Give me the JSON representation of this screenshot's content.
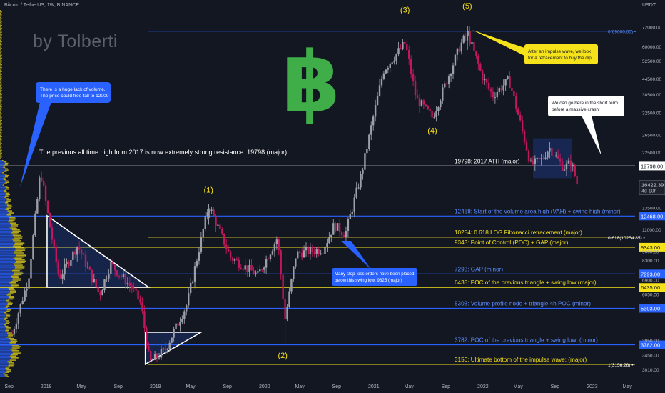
{
  "header": {
    "symbol_line": "Bitcoin / TetherUS, 1W, BINANCE",
    "currency": "USDT"
  },
  "watermark": {
    "text": "by Tolberti",
    "logo_glyph": "฿",
    "logo_color": "#3fae49"
  },
  "colors": {
    "bg": "#131722",
    "up": "#9c9fa8",
    "down": "#c2185b",
    "yellow": "#f5e21b",
    "blue": "#2962ff",
    "white": "#ffffff",
    "callout_blue": "#2962ff",
    "callout_yellow": "#f5e21b"
  },
  "chart_data": {
    "type": "candlestick",
    "symbol": "BTCUSDT",
    "timeframe": "1W",
    "y_scale": "log",
    "ylim": [
      2800,
      82000
    ],
    "x_ticks": [
      "Sep",
      "2018",
      "May",
      "Sep",
      "2019",
      "May",
      "Sep",
      "2020",
      "May",
      "Sep",
      "2021",
      "May",
      "Sep",
      "2022",
      "May",
      "Sep",
      "2023",
      "May"
    ],
    "y_ticks": [
      "72000.00",
      "60000.00",
      "52500.00",
      "44500.00",
      "38500.00",
      "32500.00",
      "26500.00",
      "22500.00",
      "16422.39",
      "13500.00",
      "11000.00",
      "9000.00",
      "8300.00",
      "6900.00",
      "6050.00",
      "3950.00",
      "3450.00",
      "3010.00"
    ],
    "path_anchors": [
      {
        "t": 2017.7,
        "price": 4200
      },
      {
        "t": 2017.85,
        "price": 7000
      },
      {
        "t": 2017.96,
        "price": 19000
      },
      {
        "t": 2018.05,
        "price": 11000
      },
      {
        "t": 2018.13,
        "price": 7000
      },
      {
        "t": 2018.3,
        "price": 9500
      },
      {
        "t": 2018.5,
        "price": 6000
      },
      {
        "t": 2018.6,
        "price": 8000
      },
      {
        "t": 2018.8,
        "price": 6400
      },
      {
        "t": 2018.88,
        "price": 5500
      },
      {
        "t": 2018.96,
        "price": 3200
      },
      {
        "t": 2019.1,
        "price": 3600
      },
      {
        "t": 2019.3,
        "price": 5500
      },
      {
        "t": 2019.5,
        "price": 13800
      },
      {
        "t": 2019.7,
        "price": 8500
      },
      {
        "t": 2019.95,
        "price": 7200
      },
      {
        "t": 2020.13,
        "price": 10200
      },
      {
        "t": 2020.2,
        "price": 4800
      },
      {
        "t": 2020.3,
        "price": 8800
      },
      {
        "t": 2020.55,
        "price": 9200
      },
      {
        "t": 2020.65,
        "price": 11500
      },
      {
        "t": 2020.75,
        "price": 10500
      },
      {
        "t": 2020.9,
        "price": 18500
      },
      {
        "t": 2021.0,
        "price": 30000
      },
      {
        "t": 2021.1,
        "price": 48000
      },
      {
        "t": 2021.3,
        "price": 62000
      },
      {
        "t": 2021.4,
        "price": 37000
      },
      {
        "t": 2021.55,
        "price": 31000
      },
      {
        "t": 2021.8,
        "price": 60000
      },
      {
        "t": 2021.87,
        "price": 68000
      },
      {
        "t": 2022.0,
        "price": 46000
      },
      {
        "t": 2022.1,
        "price": 38000
      },
      {
        "t": 2022.25,
        "price": 44000
      },
      {
        "t": 2022.35,
        "price": 30000
      },
      {
        "t": 2022.45,
        "price": 20000
      },
      {
        "t": 2022.55,
        "price": 21000
      },
      {
        "t": 2022.62,
        "price": 23500
      },
      {
        "t": 2022.75,
        "price": 19500
      },
      {
        "t": 2022.82,
        "price": 20500
      },
      {
        "t": 2022.88,
        "price": 16500
      },
      {
        "t": 2022.89,
        "price": 16422
      }
    ],
    "current_price": {
      "value": "16422.39",
      "countdown": "4d 10h"
    },
    "levels": [
      {
        "price": 69000,
        "color": "#2962ff",
        "label": "",
        "axis_label": "0(69000.00)",
        "tag": ""
      },
      {
        "price": 19798,
        "color": "#ffffff",
        "label": "19798: 2017 ATH (major)",
        "axis_label": "19798.00",
        "tag": "box"
      },
      {
        "price": 12468,
        "color": "#2962ff",
        "label": "12468: Start of the volume area high (VAH) + swing high (minor)",
        "axis_label": "12468.00",
        "tag": "box"
      },
      {
        "price": 10254,
        "color": "#f5e21b",
        "label": "10254: 0.618 LOG Fibonacci retracement (major)",
        "axis_label": "0.618(10254.85)",
        "tag": "text"
      },
      {
        "price": 9343,
        "color": "#f5e21b",
        "label": "9343: Point of Control (POC) + GAP (major)",
        "axis_label": "9343.00",
        "tag": "box"
      },
      {
        "price": 7293,
        "color": "#2962ff",
        "label": "7293: GAP (minor)",
        "axis_label": "7293.00",
        "tag": "box"
      },
      {
        "price": 6435,
        "color": "#f5e21b",
        "label": "6435: POC of the previous triangle + swing low (major)",
        "axis_label": "6435.00",
        "tag": "box"
      },
      {
        "price": 5303,
        "color": "#2962ff",
        "label": "5303: Volume profile node + triangle 4h POC (minor)",
        "axis_label": "5303.00",
        "tag": "box"
      },
      {
        "price": 3782,
        "color": "#2962ff",
        "label": "3782: POC of the previous triangle + swing low: (minor)",
        "axis_label": "3782.00",
        "tag": "box"
      },
      {
        "price": 3156,
        "color": "#f5e21b",
        "label": "3156: Ultimate bottom of the impulse wave: (major)",
        "axis_label": "1(3156.26)",
        "tag": "text"
      }
    ],
    "wave_labels": [
      {
        "text": "(1)",
        "t": 2019.5,
        "price": 15500
      },
      {
        "text": "(2)",
        "t": 2020.18,
        "price": 3350
      },
      {
        "text": "(3)",
        "t": 2021.3,
        "price": 82000
      },
      {
        "text": "(4)",
        "t": 2021.55,
        "price": 26800
      },
      {
        "text": "(5)",
        "t": 2021.87,
        "price": 85000
      }
    ],
    "annotations": {
      "resistance_note": "The previous all time high from 2017 is now extremely strong resistance: 19798 (major)",
      "volume_note": [
        "There is a huge lack of volume.",
        "The price could free-fall to 12000"
      ],
      "stoploss_note": [
        "Many stop-loss orders have been placed",
        "below this swing low: 9825 (major)"
      ],
      "retrace_note": [
        "After an impulse wave, we look",
        "for a retracement to buy the dip."
      ],
      "crash_note": [
        "We can go here in the short term",
        "before a massive crash"
      ]
    }
  }
}
